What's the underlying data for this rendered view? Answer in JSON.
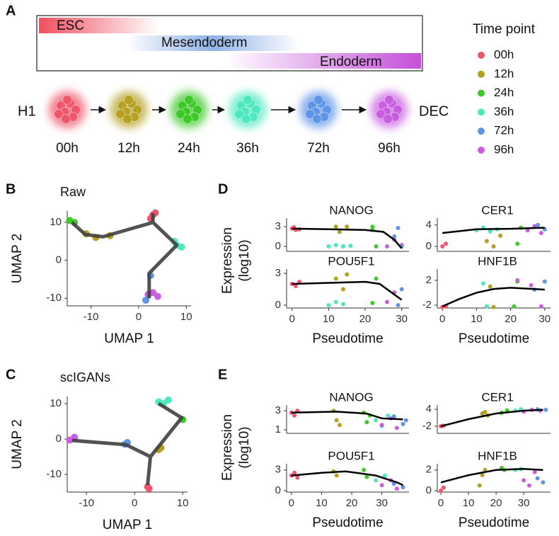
{
  "panel_a": {
    "label": "A",
    "stages": [
      {
        "name": "ESC",
        "color": "#f0505e"
      },
      {
        "name": "Mesendoderm",
        "color": "#8fb2e6"
      },
      {
        "name": "Endoderm",
        "color": "#c44fd8"
      }
    ],
    "start": "H1",
    "end": "DEC",
    "legend_title": "Time point",
    "time_points": [
      {
        "name": "00h",
        "color": "#f0566b"
      },
      {
        "name": "12h",
        "color": "#b5a020"
      },
      {
        "name": "24h",
        "color": "#3ec82a"
      },
      {
        "name": "36h",
        "color": "#4de8c0"
      },
      {
        "name": "72h",
        "color": "#5f95e8"
      },
      {
        "name": "96h",
        "color": "#c95ee0"
      }
    ]
  },
  "panel_b": {
    "label": "B"
  },
  "panel_c": {
    "label": "C"
  },
  "panel_d": {
    "label": "D",
    "y_title": [
      "Expression",
      "(log10)"
    ]
  },
  "panel_e": {
    "label": "E",
    "y_title": [
      "Expression",
      "(log10)"
    ]
  },
  "chart_data": [
    {
      "type": "trajectory",
      "title": "Raw",
      "xlabel": "UMAP 1",
      "ylabel": "UMAP 2",
      "xlim": [
        -15,
        11
      ],
      "ylim": [
        -12,
        13
      ],
      "xticks": [
        -10,
        0,
        10
      ],
      "yticks": [
        -10,
        0,
        10
      ],
      "line": {
        "color": "#404040",
        "x": [
          -14,
          -11.2,
          -7.5,
          3,
          8,
          2.2,
          2.2,
          null,
          3,
          3
        ],
        "y": [
          10,
          6.8,
          6.2,
          10,
          4,
          -3.4,
          -10,
          null,
          10,
          12.4
        ]
      },
      "clusters": [
        {
          "color": "#f0566b",
          "x": [
            3,
            2.5,
            3.5
          ],
          "y": [
            12,
            11,
            12.5
          ]
        },
        {
          "color": "#3ec82a",
          "x": [
            -14.5,
            -13.5
          ],
          "y": [
            10.5,
            10
          ]
        },
        {
          "color": "#b5a020",
          "x": [
            -11,
            -9,
            -6
          ],
          "y": [
            7,
            6,
            6.5
          ]
        },
        {
          "color": "#4de8c0",
          "x": [
            8,
            9,
            7.5
          ],
          "y": [
            4,
            3.5,
            5
          ]
        },
        {
          "color": "#c95ee0",
          "x": [
            2,
            3,
            4
          ],
          "y": [
            -9,
            -8.5,
            -9.5
          ]
        },
        {
          "color": "#5f95e8",
          "x": [
            1.5,
            2.5
          ],
          "y": [
            -10.5,
            -4
          ]
        }
      ]
    },
    {
      "type": "trajectory",
      "title": "scIGANs",
      "xlabel": "UMAP 1",
      "ylabel": "UMAP 2",
      "xlim": [
        -14,
        11
      ],
      "ylim": [
        -15,
        12
      ],
      "xticks": [
        -10,
        0,
        10
      ],
      "yticks": [
        -10,
        0,
        10
      ],
      "line": {
        "color": "#404040",
        "x": [
          -13,
          -1.8,
          3.3,
          9.8,
          5,
          null,
          3.3,
          2.7
        ],
        "y": [
          -0.4,
          -1.6,
          -5,
          6,
          10,
          null,
          -5,
          -13
        ]
      },
      "clusters": [
        {
          "color": "#c95ee0",
          "x": [
            -13.5,
            -12.5
          ],
          "y": [
            -0.3,
            0.5
          ]
        },
        {
          "color": "#5f95e8",
          "x": [
            -2,
            -1.5
          ],
          "y": [
            -1.5,
            -1
          ]
        },
        {
          "color": "#b5a020",
          "x": [
            5,
            5.5
          ],
          "y": [
            -3,
            -2.5
          ]
        },
        {
          "color": "#4de8c0",
          "x": [
            5,
            6,
            7
          ],
          "y": [
            10.5,
            10,
            11
          ]
        },
        {
          "color": "#3ec82a",
          "x": [
            10
          ],
          "y": [
            5.5
          ]
        },
        {
          "color": "#f0566b",
          "x": [
            2.7,
            3
          ],
          "y": [
            -13.5,
            -14
          ]
        }
      ]
    },
    {
      "type": "expression",
      "title": "NANOG",
      "xlim": [
        -1.5,
        32
      ],
      "ylim": [
        -0.75,
        4.3
      ],
      "yticks": [
        0,
        3
      ],
      "curve": {
        "color": "#000000",
        "x": [
          0,
          10,
          20,
          25,
          28,
          30
        ],
        "y": [
          2.7,
          2.6,
          2.5,
          2.2,
          1,
          -0.3
        ]
      },
      "clusters": [
        {
          "color": "#f0566b",
          "x": [
            0,
            1,
            0.5,
            2
          ],
          "y": [
            2.7,
            2.5,
            2.9,
            2.6
          ]
        },
        {
          "color": "#b5a020",
          "x": [
            12,
            13,
            14,
            15
          ],
          "y": [
            3,
            2.2,
            0,
            3
          ]
        },
        {
          "color": "#4de8c0",
          "x": [
            10,
            12,
            14,
            16
          ],
          "y": [
            0,
            0.2,
            0,
            0.1
          ]
        },
        {
          "color": "#3ec82a",
          "x": [
            22,
            23,
            22
          ],
          "y": [
            3,
            0,
            2.5
          ]
        },
        {
          "color": "#c95ee0",
          "x": [
            26,
            28,
            30
          ],
          "y": [
            0,
            1,
            0.2
          ]
        },
        {
          "color": "#5f95e8",
          "x": [
            28,
            30,
            29
          ],
          "y": [
            1.5,
            0,
            2.8
          ]
        }
      ]
    },
    {
      "type": "expression",
      "title": "CER1",
      "xlim": [
        -1.5,
        31.7
      ],
      "ylim": [
        -0.93,
        5.3
      ],
      "yticks": [
        0,
        4
      ],
      "curve": {
        "color": "#000000",
        "x": [
          0,
          10,
          20,
          30
        ],
        "y": [
          2.5,
          3.2,
          3.3,
          3.5
        ]
      },
      "clusters": [
        {
          "color": "#f0566b",
          "x": [
            0,
            1
          ],
          "y": [
            0,
            0.5
          ]
        },
        {
          "color": "#4de8c0",
          "x": [
            10,
            12,
            14,
            16
          ],
          "y": [
            3,
            3.5,
            2.8,
            3.2
          ]
        },
        {
          "color": "#b5a020",
          "x": [
            13,
            15,
            17
          ],
          "y": [
            1,
            0,
            2
          ]
        },
        {
          "color": "#3ec82a",
          "x": [
            22,
            23
          ],
          "y": [
            0.5,
            3.5
          ]
        },
        {
          "color": "#c95ee0",
          "x": [
            25,
            27,
            29
          ],
          "y": [
            3,
            3.8,
            2.5
          ]
        },
        {
          "color": "#5f95e8",
          "x": [
            28,
            30
          ],
          "y": [
            4,
            3.2
          ]
        }
      ]
    },
    {
      "type": "expression",
      "title": "POU5F1",
      "xlabel": "Pseudotime",
      "xlim": [
        -1.5,
        32
      ],
      "ylim": [
        -0.27,
        3.4
      ],
      "xticks": [
        0,
        10,
        20,
        30
      ],
      "yticks": [
        0,
        3
      ],
      "curve": {
        "color": "#000000",
        "x": [
          0,
          10,
          20,
          24,
          28,
          30
        ],
        "y": [
          2,
          2.1,
          2.2,
          2,
          1,
          0.5
        ]
      },
      "clusters": [
        {
          "color": "#f0566b",
          "x": [
            0,
            1,
            2
          ],
          "y": [
            2,
            1.8,
            2.2
          ]
        },
        {
          "color": "#4de8c0",
          "x": [
            10,
            12,
            14
          ],
          "y": [
            0,
            0.3,
            0.1
          ]
        },
        {
          "color": "#b5a020",
          "x": [
            12,
            14,
            15
          ],
          "y": [
            2.5,
            1.5,
            2.9
          ]
        },
        {
          "color": "#3ec82a",
          "x": [
            22,
            23
          ],
          "y": [
            0.2,
            2.5
          ]
        },
        {
          "color": "#c95ee0",
          "x": [
            26,
            28
          ],
          "y": [
            0.3,
            1.2
          ]
        },
        {
          "color": "#5f95e8",
          "x": [
            29,
            30
          ],
          "y": [
            0,
            1.5
          ]
        }
      ]
    },
    {
      "type": "expression",
      "title": "HNF1B",
      "xlabel": "Pseudotime",
      "xlim": [
        -1.5,
        31.7
      ],
      "ylim": [
        -2.46,
        3.8
      ],
      "xticks": [
        0,
        10,
        20,
        30
      ],
      "yticks": [
        -2,
        2
      ],
      "curve": {
        "color": "#000000",
        "x": [
          0,
          5,
          10,
          15,
          20,
          30
        ],
        "y": [
          -2.2,
          -1,
          0,
          0.6,
          0.8,
          0.5
        ]
      },
      "clusters": [
        {
          "color": "#f0566b",
          "x": [
            0,
            1
          ],
          "y": [
            -2.3,
            -2.2
          ]
        },
        {
          "color": "#4de8c0",
          "x": [
            12,
            13
          ],
          "y": [
            1.5,
            -2.2
          ]
        },
        {
          "color": "#b5a020",
          "x": [
            14,
            15
          ],
          "y": [
            1,
            -2.3
          ]
        },
        {
          "color": "#3ec82a",
          "x": [
            21,
            22
          ],
          "y": [
            -2.2,
            1.8
          ]
        },
        {
          "color": "#c95ee0",
          "x": [
            22,
            26,
            29
          ],
          "y": [
            2,
            1.2,
            -2.2
          ]
        },
        {
          "color": "#5f95e8",
          "x": [
            27,
            30
          ],
          "y": [
            0.5,
            1.8
          ]
        }
      ]
    },
    {
      "type": "expression",
      "title": "NANOG",
      "xlim": [
        -1.6,
        39
      ],
      "ylim": [
        0.63,
        3.6
      ],
      "yticks": [
        1,
        3
      ],
      "curve": {
        "color": "#000000",
        "x": [
          0,
          15,
          25,
          30,
          37
        ],
        "y": [
          2.8,
          2.9,
          2.7,
          2.2,
          2.1
        ]
      },
      "clusters": [
        {
          "color": "#f0566b",
          "x": [
            0,
            1,
            2
          ],
          "y": [
            2.8,
            2.5,
            3
          ]
        },
        {
          "color": "#b5a020",
          "x": [
            14,
            15,
            16
          ],
          "y": [
            3,
            2,
            1.5
          ]
        },
        {
          "color": "#3ec82a",
          "x": [
            24,
            25,
            26
          ],
          "y": [
            2.8,
            1.8,
            2.5
          ]
        },
        {
          "color": "#4de8c0",
          "x": [
            28,
            30,
            32
          ],
          "y": [
            2,
            1.4,
            2.5
          ]
        },
        {
          "color": "#c95ee0",
          "x": [
            30,
            33,
            35
          ],
          "y": [
            1.5,
            2.2,
            1.2
          ]
        },
        {
          "color": "#5f95e8",
          "x": [
            34,
            37,
            38
          ],
          "y": [
            2.4,
            1.6,
            2
          ]
        }
      ]
    },
    {
      "type": "expression",
      "title": "CER1",
      "xlim": [
        -1.3,
        39.7
      ],
      "ylim": [
        -4.5,
        5.5
      ],
      "yticks": [
        -2,
        4
      ],
      "curve": {
        "color": "#000000",
        "x": [
          0,
          10,
          20,
          30,
          37
        ],
        "y": [
          -2,
          0.5,
          2.5,
          3.5,
          3.8
        ]
      },
      "clusters": [
        {
          "color": "#f0566b",
          "x": [
            0,
            1
          ],
          "y": [
            -2,
            -1.8
          ]
        },
        {
          "color": "#b5a020",
          "x": [
            15,
            16,
            17
          ],
          "y": [
            2.5,
            3,
            1.8
          ]
        },
        {
          "color": "#3ec82a",
          "x": [
            22,
            24
          ],
          "y": [
            2.8,
            3.6
          ]
        },
        {
          "color": "#4de8c0",
          "x": [
            27,
            29
          ],
          "y": [
            3.5,
            4
          ]
        },
        {
          "color": "#c95ee0",
          "x": [
            30,
            33,
            36
          ],
          "y": [
            3.2,
            3.8,
            3.5
          ]
        },
        {
          "color": "#5f95e8",
          "x": [
            35,
            38
          ],
          "y": [
            4,
            3.8
          ]
        }
      ]
    },
    {
      "type": "expression",
      "title": "POU5F1",
      "xlabel": "Pseudotime",
      "xlim": [
        -1.6,
        39
      ],
      "ylim": [
        -0.2,
        3.9
      ],
      "xticks": [
        0,
        10,
        20,
        30
      ],
      "yticks": [
        0,
        3
      ],
      "curve": {
        "color": "#000000",
        "x": [
          0,
          10,
          18,
          28,
          35,
          37
        ],
        "y": [
          2.2,
          2.6,
          2.8,
          2.2,
          1.2,
          0.8
        ]
      },
      "clusters": [
        {
          "color": "#f0566b",
          "x": [
            0,
            1,
            2
          ],
          "y": [
            2.2,
            2.6,
            1.9
          ]
        },
        {
          "color": "#b5a020",
          "x": [
            14,
            15
          ],
          "y": [
            2.8,
            2.2
          ]
        },
        {
          "color": "#3ec82a",
          "x": [
            24,
            25
          ],
          "y": [
            3,
            2
          ]
        },
        {
          "color": "#4de8c0",
          "x": [
            28,
            31
          ],
          "y": [
            1.5,
            2.2
          ]
        },
        {
          "color": "#c95ee0",
          "x": [
            30,
            33,
            35
          ],
          "y": [
            0.8,
            1.5,
            0.3
          ]
        },
        {
          "color": "#5f95e8",
          "x": [
            34,
            37
          ],
          "y": [
            1,
            0.5
          ]
        }
      ]
    },
    {
      "type": "expression",
      "title": "HNF1B",
      "xlabel": "Pseudotime",
      "xlim": [
        -1.3,
        39.7
      ],
      "ylim": [
        -0.14,
        2.6
      ],
      "xticks": [
        0,
        10,
        20,
        30
      ],
      "yticks": [
        0,
        2
      ],
      "curve": {
        "color": "#000000",
        "x": [
          0,
          10,
          20,
          30,
          37
        ],
        "y": [
          0.8,
          1.5,
          2,
          2.1,
          2
        ]
      },
      "clusters": [
        {
          "color": "#f0566b",
          "x": [
            0,
            1
          ],
          "y": [
            0,
            0.3
          ]
        },
        {
          "color": "#b5a020",
          "x": [
            14,
            15,
            16
          ],
          "y": [
            0.5,
            1.5,
            2
          ]
        },
        {
          "color": "#3ec82a",
          "x": [
            22,
            23
          ],
          "y": [
            2.2,
            2
          ]
        },
        {
          "color": "#4de8c0",
          "x": [
            27,
            29
          ],
          "y": [
            2,
            2.1
          ]
        },
        {
          "color": "#c95ee0",
          "x": [
            30,
            32,
            34
          ],
          "y": [
            1,
            0.5,
            1.8
          ]
        },
        {
          "color": "#5f95e8",
          "x": [
            35,
            37
          ],
          "y": [
            1.2,
            0.8
          ]
        }
      ]
    }
  ]
}
